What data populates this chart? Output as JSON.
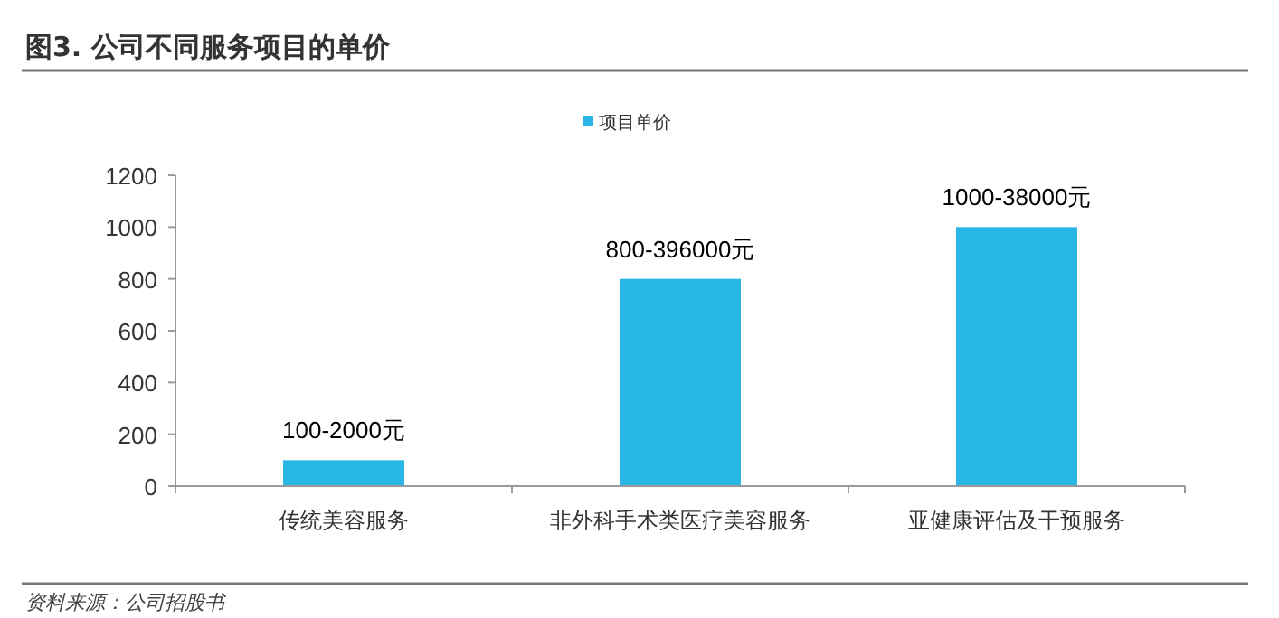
{
  "chart_data": {
    "type": "bar",
    "title": "图3. 公司不同服务项目的单价",
    "categories": [
      "传统美容服务",
      "非外科手术类医疗美容服务",
      "亚健康评估及干预服务"
    ],
    "series": [
      {
        "name": "项目单价",
        "color": "#27b6e6",
        "values": [
          100,
          800,
          1000
        ],
        "value_labels": [
          "100-2000元",
          "800-396000元",
          "1000-38000元"
        ]
      }
    ],
    "ylim": [
      0,
      1200
    ],
    "yticks": [
      0,
      200,
      400,
      600,
      800,
      1000,
      1200
    ],
    "legend": "top",
    "grid": false,
    "annotations": [
      "资料来源：公司招股书"
    ]
  }
}
